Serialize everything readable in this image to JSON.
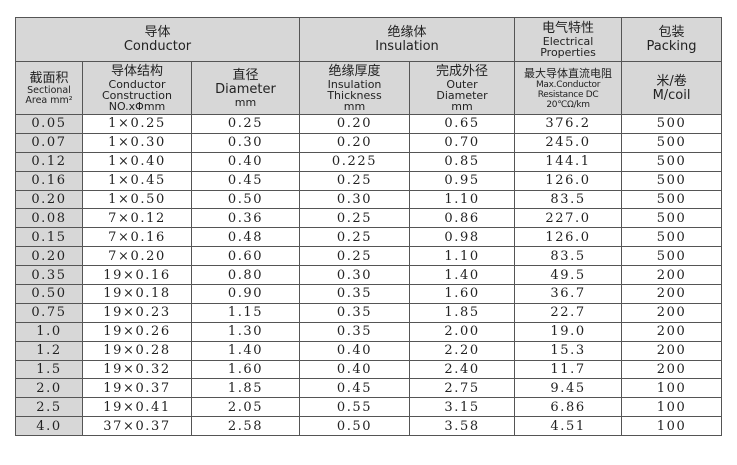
{
  "header": {
    "conductor": {
      "zh": "导体",
      "en": "Conductor"
    },
    "insulation": {
      "zh": "绝缘体",
      "en": "Insulation"
    },
    "electrical": {
      "zh": "电气特性",
      "en1": "Electrical",
      "en2": "Properties"
    },
    "packing": {
      "zh": "包装",
      "en": "Packing"
    },
    "sectional_area": {
      "zh": "截面积",
      "en1": "Sectional",
      "en2": "Area mm²"
    },
    "construction": {
      "zh": "导体结构",
      "en1": "Conductor",
      "en2": "Construction",
      "en3": "NO.xΦmm"
    },
    "diameter": {
      "zh": "直径",
      "en1": "Diameter",
      "en2": "mm"
    },
    "thickness": {
      "zh": "绝缘厚度",
      "en1": "Insulation",
      "en2": "Thickness",
      "en3": "mm"
    },
    "outer_diameter": {
      "zh": "完成外径",
      "en1": "Outer",
      "en2": "Diameter",
      "en3": "mm"
    },
    "resistance": {
      "zh": "最大导体直流电阻",
      "en1": "Max.Conductor",
      "en2": "Resistance DC 20℃Ω/km"
    },
    "per_coil": {
      "zh": "米/卷",
      "en": "M/coil"
    }
  },
  "rows": [
    [
      "0.05",
      "1×0.25",
      "0.25",
      "0.20",
      "0.65",
      "376.2",
      "500"
    ],
    [
      "0.07",
      "1×0.30",
      "0.30",
      "0.20",
      "0.70",
      "245.0",
      "500"
    ],
    [
      "0.12",
      "1×0.40",
      "0.40",
      "0.225",
      "0.85",
      "144.1",
      "500"
    ],
    [
      "0.16",
      "1×0.45",
      "0.45",
      "0.25",
      "0.95",
      "126.0",
      "500"
    ],
    [
      "0.20",
      "1×0.50",
      "0.50",
      "0.30",
      "1.10",
      "83.5",
      "500"
    ],
    [
      "0.08",
      "7×0.12",
      "0.36",
      "0.25",
      "0.86",
      "227.0",
      "500"
    ],
    [
      "0.15",
      "7×0.16",
      "0.48",
      "0.25",
      "0.98",
      "126.0",
      "500"
    ],
    [
      "0.20",
      "7×0.20",
      "0.60",
      "0.25",
      "1.10",
      "83.5",
      "500"
    ],
    [
      "0.35",
      "19×0.16",
      "0.80",
      "0.30",
      "1.40",
      "49.5",
      "200"
    ],
    [
      "0.50",
      "19×0.18",
      "0.90",
      "0.35",
      "1.60",
      "36.7",
      "200"
    ],
    [
      "0.75",
      "19×0.23",
      "1.15",
      "0.35",
      "1.85",
      "22.7",
      "200"
    ],
    [
      "1.0",
      "19×0.26",
      "1.30",
      "0.35",
      "2.00",
      "19.0",
      "200"
    ],
    [
      "1.2",
      "19×0.28",
      "1.40",
      "0.40",
      "2.20",
      "15.3",
      "200"
    ],
    [
      "1.5",
      "19×0.32",
      "1.60",
      "0.40",
      "2.40",
      "11.7",
      "200"
    ],
    [
      "2.0",
      "19×0.37",
      "1.85",
      "0.45",
      "2.75",
      "9.45",
      "100"
    ],
    [
      "2.5",
      "19×0.41",
      "2.05",
      "0.55",
      "3.15",
      "6.86",
      "100"
    ],
    [
      "4.0",
      "37×0.37",
      "2.58",
      "0.50",
      "3.58",
      "4.51",
      "100"
    ]
  ]
}
